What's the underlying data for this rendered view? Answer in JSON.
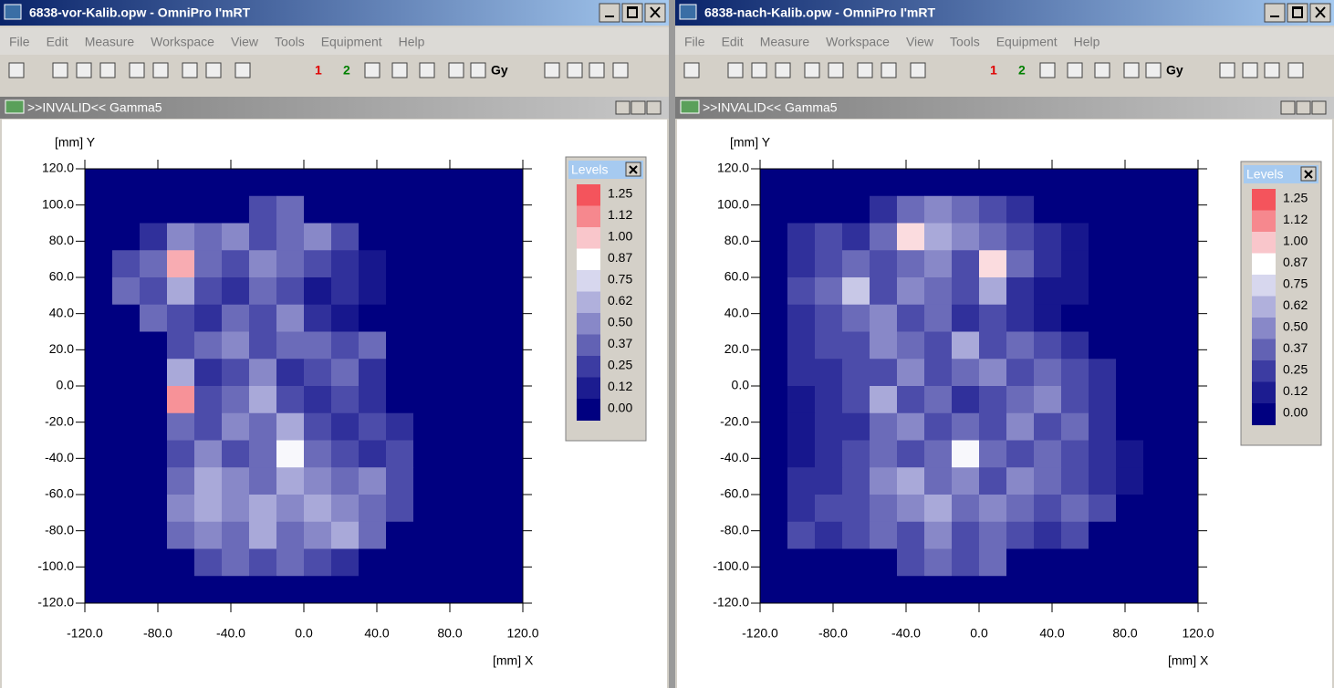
{
  "windows": [
    {
      "title": "6838-vor-Kalib.opw - OmniPro I'mRT",
      "menu": [
        "File",
        "Edit",
        "Measure",
        "Workspace",
        "View",
        "Tools",
        "Equipment",
        "Help"
      ],
      "toolbar": [
        "1",
        "2",
        "Gy"
      ],
      "panel_title": ">>INVALID<< Gamma5"
    },
    {
      "title": "6838-nach-Kalib.opw - OmniPro I'mRT",
      "menu": [
        "File",
        "Edit",
        "Measure",
        "Workspace",
        "View",
        "Tools",
        "Equipment",
        "Help"
      ],
      "toolbar": [
        "1",
        "2",
        "Gy"
      ],
      "panel_title": ">>INVALID<< Gamma5"
    }
  ],
  "chart_data": [
    {
      "type": "heatmap",
      "x_label": "[mm] X",
      "y_label": "[mm] Y",
      "xlim": [
        -120,
        120
      ],
      "ylim": [
        -120,
        120
      ],
      "xticks": [
        {
          "value": -120,
          "label": "-120.0"
        },
        {
          "value": -80,
          "label": "-80.0"
        },
        {
          "value": -40,
          "label": "-40.0"
        },
        {
          "value": 0,
          "label": "0.0"
        },
        {
          "value": 40,
          "label": "40.0"
        },
        {
          "value": 80,
          "label": "80.0"
        },
        {
          "value": 120,
          "label": "120.0"
        }
      ],
      "yticks": [
        {
          "value": 120,
          "label": "120.0"
        },
        {
          "value": 100,
          "label": "100.0"
        },
        {
          "value": 80,
          "label": "80.0"
        },
        {
          "value": 60,
          "label": "60.0"
        },
        {
          "value": 40,
          "label": "40.0"
        },
        {
          "value": 20,
          "label": "20.0"
        },
        {
          "value": 0,
          "label": "0.0"
        },
        {
          "value": -20,
          "label": "-20.0"
        },
        {
          "value": -40,
          "label": "-40.0"
        },
        {
          "value": -60,
          "label": "-60.0"
        },
        {
          "value": -80,
          "label": "-80.0"
        },
        {
          "value": -100,
          "label": "-100.0"
        },
        {
          "value": -120,
          "label": "-120.0"
        }
      ],
      "xbins": [
        -120,
        -105,
        -90,
        -75,
        -60,
        -45,
        -30,
        -15,
        0,
        15,
        30,
        45,
        60,
        75,
        90,
        105,
        120
      ],
      "ybins": [
        120,
        105,
        90,
        75,
        60,
        45,
        30,
        15,
        0,
        -15,
        -30,
        -45,
        -60,
        -75,
        -90,
        -105,
        -120
      ],
      "values": [
        [
          0,
          0,
          0,
          0,
          0,
          0,
          0,
          0,
          0,
          0,
          0,
          0,
          0,
          0,
          0,
          0
        ],
        [
          0,
          0,
          0,
          0,
          0,
          0,
          0.3,
          0.4,
          0,
          0,
          0,
          0,
          0,
          0,
          0,
          0
        ],
        [
          0,
          0,
          0.2,
          0.5,
          0.4,
          0.5,
          0.3,
          0.4,
          0.5,
          0.3,
          0,
          0,
          0,
          0,
          0,
          0
        ],
        [
          0,
          0.3,
          0.4,
          1.05,
          0.4,
          0.3,
          0.5,
          0.4,
          0.3,
          0.2,
          0.1,
          0,
          0,
          0,
          0,
          0
        ],
        [
          0,
          0.4,
          0.3,
          0.6,
          0.3,
          0.2,
          0.4,
          0.3,
          0.1,
          0.2,
          0.1,
          0,
          0,
          0,
          0,
          0
        ],
        [
          0,
          0,
          0.4,
          0.3,
          0.2,
          0.4,
          0.3,
          0.5,
          0.2,
          0.1,
          0,
          0,
          0,
          0,
          0,
          0
        ],
        [
          0,
          0,
          0,
          0.3,
          0.4,
          0.5,
          0.3,
          0.4,
          0.4,
          0.3,
          0.4,
          0,
          0,
          0,
          0,
          0
        ],
        [
          0,
          0,
          0,
          0.6,
          0.2,
          0.3,
          0.5,
          0.2,
          0.3,
          0.4,
          0.2,
          0,
          0,
          0,
          0,
          0
        ],
        [
          0,
          0,
          0,
          1.1,
          0.3,
          0.4,
          0.6,
          0.3,
          0.2,
          0.3,
          0.2,
          0,
          0,
          0,
          0,
          0
        ],
        [
          0,
          0,
          0,
          0.4,
          0.3,
          0.5,
          0.4,
          0.6,
          0.3,
          0.2,
          0.3,
          0.2,
          0,
          0,
          0,
          0
        ],
        [
          0,
          0,
          0,
          0.3,
          0.5,
          0.3,
          0.4,
          0.85,
          0.4,
          0.3,
          0.2,
          0.3,
          0,
          0,
          0,
          0
        ],
        [
          0,
          0,
          0,
          0.4,
          0.6,
          0.5,
          0.4,
          0.6,
          0.5,
          0.4,
          0.5,
          0.3,
          0,
          0,
          0,
          0
        ],
        [
          0,
          0,
          0,
          0.5,
          0.6,
          0.5,
          0.6,
          0.5,
          0.6,
          0.5,
          0.4,
          0.3,
          0,
          0,
          0,
          0
        ],
        [
          0,
          0,
          0,
          0.4,
          0.5,
          0.4,
          0.6,
          0.4,
          0.5,
          0.6,
          0.4,
          0,
          0,
          0,
          0,
          0
        ],
        [
          0,
          0,
          0,
          0,
          0.3,
          0.4,
          0.3,
          0.4,
          0.3,
          0.2,
          0,
          0,
          0,
          0,
          0,
          0
        ],
        [
          0,
          0,
          0,
          0,
          0,
          0,
          0,
          0,
          0,
          0,
          0,
          0,
          0,
          0,
          0,
          0
        ]
      ],
      "legend_title": "Levels",
      "levels": [
        1.25,
        1.12,
        {
          "value": 1,
          "label": "1.00"
        },
        0.87,
        0.75,
        0.62,
        {
          "value": 0.5,
          "label": "0.50"
        },
        0.37,
        0.25,
        0.12,
        {
          "value": 0,
          "label": "0.00"
        }
      ],
      "level_colors": [
        "#f4545c",
        "#f6888e",
        "#f9c6cb",
        "#ffffff",
        "#d7d7ee",
        "#b0b0dc",
        "#8888c8",
        "#6262b4",
        "#3c3ca2",
        "#1c1c90",
        "#000080"
      ]
    },
    {
      "type": "heatmap",
      "x_label": "[mm] X",
      "y_label": "[mm] Y",
      "xlim": [
        -120,
        120
      ],
      "ylim": [
        -120,
        120
      ],
      "xticks": [
        {
          "value": -120,
          "label": "-120.0"
        },
        {
          "value": -80,
          "label": "-80.0"
        },
        {
          "value": -40,
          "label": "-40.0"
        },
        {
          "value": 0,
          "label": "0.0"
        },
        {
          "value": 40,
          "label": "40.0"
        },
        {
          "value": 80,
          "label": "80.0"
        },
        {
          "value": 120,
          "label": "120.0"
        }
      ],
      "yticks": [
        {
          "value": 120,
          "label": "120.0"
        },
        {
          "value": 100,
          "label": "100.0"
        },
        {
          "value": 80,
          "label": "80.0"
        },
        {
          "value": 60,
          "label": "60.0"
        },
        {
          "value": 40,
          "label": "40.0"
        },
        {
          "value": 20,
          "label": "20.0"
        },
        {
          "value": 0,
          "label": "0.0"
        },
        {
          "value": -20,
          "label": "-20.0"
        },
        {
          "value": -40,
          "label": "-40.0"
        },
        {
          "value": -60,
          "label": "-60.0"
        },
        {
          "value": -80,
          "label": "-80.0"
        },
        {
          "value": -100,
          "label": "-100.0"
        },
        {
          "value": -120,
          "label": "-120.0"
        }
      ],
      "xbins": [
        -120,
        -105,
        -90,
        -75,
        -60,
        -45,
        -30,
        -15,
        0,
        15,
        30,
        45,
        60,
        75,
        90,
        105,
        120
      ],
      "ybins": [
        120,
        105,
        90,
        75,
        60,
        45,
        30,
        15,
        0,
        -15,
        -30,
        -45,
        -60,
        -75,
        -90,
        -105,
        -120
      ],
      "values": [
        [
          0,
          0,
          0,
          0,
          0,
          0,
          0,
          0,
          0,
          0,
          0,
          0,
          0,
          0,
          0,
          0
        ],
        [
          0,
          0,
          0,
          0,
          0.2,
          0.4,
          0.5,
          0.4,
          0.3,
          0.2,
          0,
          0,
          0,
          0,
          0,
          0
        ],
        [
          0,
          0.2,
          0.3,
          0.2,
          0.4,
          0.95,
          0.6,
          0.5,
          0.4,
          0.3,
          0.2,
          0.1,
          0,
          0,
          0,
          0
        ],
        [
          0,
          0.2,
          0.3,
          0.4,
          0.3,
          0.4,
          0.5,
          0.3,
          0.95,
          0.4,
          0.2,
          0.1,
          0,
          0,
          0,
          0
        ],
        [
          0,
          0.3,
          0.4,
          0.7,
          0.3,
          0.5,
          0.4,
          0.3,
          0.6,
          0.2,
          0.1,
          0.1,
          0,
          0,
          0,
          0
        ],
        [
          0,
          0.2,
          0.3,
          0.4,
          0.5,
          0.3,
          0.4,
          0.2,
          0.3,
          0.2,
          0.1,
          0,
          0,
          0,
          0,
          0
        ],
        [
          0,
          0.2,
          0.3,
          0.3,
          0.5,
          0.4,
          0.3,
          0.6,
          0.3,
          0.4,
          0.3,
          0.2,
          0,
          0,
          0,
          0
        ],
        [
          0,
          0.2,
          0.2,
          0.3,
          0.3,
          0.5,
          0.3,
          0.4,
          0.5,
          0.3,
          0.4,
          0.3,
          0.2,
          0,
          0,
          0
        ],
        [
          0,
          0.1,
          0.2,
          0.3,
          0.6,
          0.3,
          0.4,
          0.2,
          0.3,
          0.4,
          0.5,
          0.3,
          0.2,
          0,
          0,
          0
        ],
        [
          0,
          0.1,
          0.2,
          0.2,
          0.4,
          0.5,
          0.3,
          0.4,
          0.3,
          0.5,
          0.3,
          0.4,
          0.2,
          0,
          0,
          0
        ],
        [
          0,
          0.1,
          0.2,
          0.3,
          0.4,
          0.3,
          0.4,
          0.85,
          0.4,
          0.3,
          0.4,
          0.3,
          0.2,
          0.1,
          0,
          0
        ],
        [
          0,
          0.2,
          0.2,
          0.3,
          0.5,
          0.6,
          0.4,
          0.5,
          0.3,
          0.5,
          0.4,
          0.3,
          0.2,
          0.1,
          0,
          0
        ],
        [
          0,
          0.2,
          0.3,
          0.3,
          0.4,
          0.5,
          0.6,
          0.4,
          0.5,
          0.4,
          0.3,
          0.4,
          0.3,
          0,
          0,
          0
        ],
        [
          0,
          0.3,
          0.2,
          0.3,
          0.4,
          0.3,
          0.5,
          0.3,
          0.4,
          0.3,
          0.2,
          0.3,
          0,
          0,
          0,
          0
        ],
        [
          0,
          0,
          0,
          0,
          0,
          0.3,
          0.4,
          0.3,
          0.4,
          0,
          0,
          0,
          0,
          0,
          0,
          0
        ],
        [
          0,
          0,
          0,
          0,
          0,
          0,
          0,
          0,
          0,
          0,
          0,
          0,
          0,
          0,
          0,
          0
        ]
      ],
      "legend_title": "Levels",
      "levels": [
        1.25,
        1.12,
        {
          "value": 1,
          "label": "1.00"
        },
        0.87,
        0.75,
        0.62,
        {
          "value": 0.5,
          "label": "0.50"
        },
        0.37,
        0.25,
        0.12,
        {
          "value": 0,
          "label": "0.00"
        }
      ],
      "level_colors": [
        "#f4545c",
        "#f6888e",
        "#f9c6cb",
        "#ffffff",
        "#d7d7ee",
        "#b0b0dc",
        "#8888c8",
        "#6262b4",
        "#3c3ca2",
        "#1c1c90",
        "#000080"
      ]
    }
  ]
}
